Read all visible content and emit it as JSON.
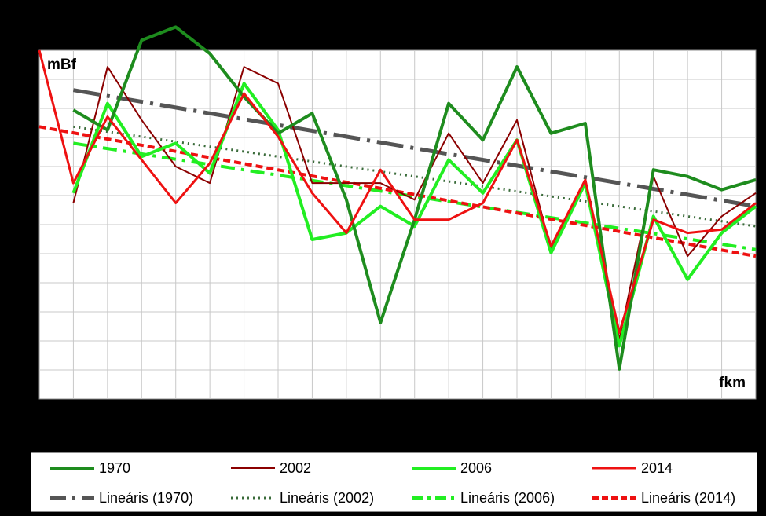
{
  "chart_data": {
    "type": "line",
    "ylabel": "mBf",
    "xlabel": "fkm",
    "grid": true,
    "x": [
      0,
      1,
      2,
      3,
      4,
      5,
      6,
      7,
      8,
      9,
      10,
      11,
      12,
      13,
      14,
      15,
      16,
      17,
      18,
      19,
      20,
      21
    ],
    "xlim": [
      0,
      21
    ],
    "ylim": [
      0,
      10.5
    ],
    "series": [
      {
        "name": "1970",
        "color": "#1e8c1e",
        "width": 4,
        "dash": "",
        "values": [
          null,
          8.7,
          8.1,
          10.8,
          11.2,
          10.4,
          9.1,
          8.0,
          8.6,
          6.0,
          2.3,
          5.4,
          8.9,
          7.8,
          10.0,
          8.0,
          8.3,
          0.9,
          6.9,
          6.7,
          6.3,
          6.6
        ]
      },
      {
        "name": "2002",
        "color": "#8b0000",
        "width": 2,
        "dash": "",
        "values": [
          null,
          5.9,
          10.0,
          8.4,
          7.0,
          6.5,
          10.0,
          9.5,
          6.5,
          6.5,
          6.5,
          6.0,
          8.0,
          6.5,
          8.4,
          4.5,
          6.5,
          1.8,
          6.7,
          4.3,
          5.5,
          6.2
        ]
      },
      {
        "name": "2006",
        "color": "#22ee22",
        "width": 4,
        "dash": "",
        "values": [
          null,
          6.2,
          8.9,
          7.3,
          7.7,
          6.8,
          9.5,
          8.1,
          4.8,
          5.0,
          5.8,
          5.2,
          7.2,
          6.2,
          7.8,
          4.4,
          6.5,
          1.6,
          5.5,
          3.6,
          5.0,
          5.8
        ]
      },
      {
        "name": "2014",
        "color": "#ee1111",
        "width": 3,
        "dash": "",
        "values": [
          10.5,
          6.5,
          8.5,
          7.2,
          5.9,
          7.1,
          9.2,
          7.9,
          6.2,
          5.0,
          6.9,
          5.4,
          5.4,
          5.9,
          7.8,
          4.6,
          6.6,
          2.0,
          5.4,
          5.0,
          5.1,
          5.9
        ]
      },
      {
        "name": "Lineáris (1970)",
        "color": "#555555",
        "width": 5,
        "dash": "34,9,4,9",
        "values": [
          null,
          9.3,
          null,
          null,
          null,
          null,
          null,
          null,
          null,
          null,
          null,
          null,
          null,
          null,
          null,
          null,
          null,
          null,
          null,
          null,
          null,
          5.8
        ]
      },
      {
        "name": "Lineáris (2002)",
        "color": "#3a6b3a",
        "width": 3,
        "dash": "2,5",
        "values": [
          null,
          8.2,
          null,
          null,
          null,
          null,
          null,
          null,
          null,
          null,
          null,
          null,
          null,
          null,
          null,
          null,
          null,
          null,
          null,
          null,
          null,
          5.2
        ]
      },
      {
        "name": "Lineáris (2006)",
        "color": "#22ee22",
        "width": 4,
        "dash": "18,8,4,8",
        "values": [
          null,
          7.7,
          null,
          null,
          null,
          null,
          null,
          null,
          null,
          null,
          null,
          null,
          null,
          null,
          null,
          null,
          null,
          null,
          null,
          null,
          null,
          4.5
        ]
      },
      {
        "name": "Lineáris (2014)",
        "color": "#ee1111",
        "width": 4,
        "dash": "9,5",
        "values": [
          8.2,
          null,
          null,
          null,
          null,
          null,
          null,
          null,
          null,
          null,
          null,
          null,
          null,
          null,
          null,
          null,
          null,
          null,
          null,
          null,
          null,
          4.3
        ]
      }
    ]
  }
}
